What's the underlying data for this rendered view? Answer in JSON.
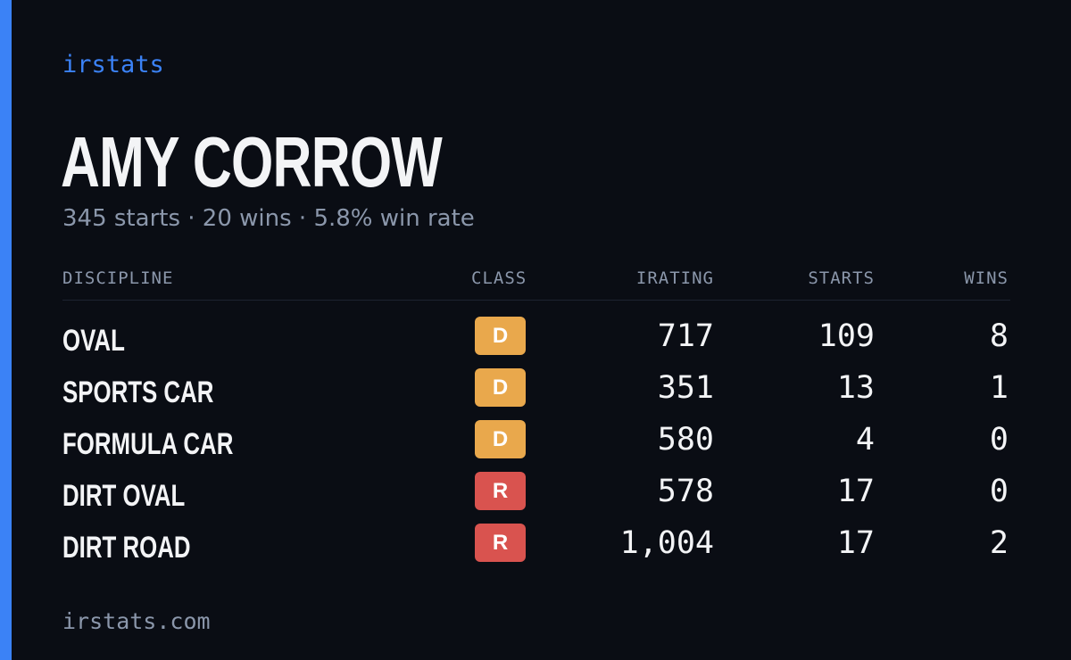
{
  "brand": "irstats",
  "profile": {
    "name": "AMY CORROW",
    "summary": "345 starts · 20 wins · 5.8% win rate"
  },
  "table": {
    "headers": {
      "discipline": "DISCIPLINE",
      "class": "CLASS",
      "irating": "IRATING",
      "starts": "STARTS",
      "wins": "WINS"
    },
    "rows": [
      {
        "discipline": "OVAL",
        "class": "D",
        "class_color": "#e9a84c",
        "irating": "717",
        "starts": "109",
        "wins": "8"
      },
      {
        "discipline": "SPORTS CAR",
        "class": "D",
        "class_color": "#e9a84c",
        "irating": "351",
        "starts": "13",
        "wins": "1"
      },
      {
        "discipline": "FORMULA CAR",
        "class": "D",
        "class_color": "#e9a84c",
        "irating": "580",
        "starts": "4",
        "wins": "0"
      },
      {
        "discipline": "DIRT OVAL",
        "class": "R",
        "class_color": "#d9534f",
        "irating": "578",
        "starts": "17",
        "wins": "0"
      },
      {
        "discipline": "DIRT ROAD",
        "class": "R",
        "class_color": "#d9534f",
        "irating": "1,004",
        "starts": "17",
        "wins": "2"
      }
    ]
  },
  "footer": "irstats.com",
  "colors": {
    "accent": "#3b82f6",
    "background": "#0a0d14",
    "muted_text": "#8b97ab",
    "text": "#f3f4f6"
  }
}
